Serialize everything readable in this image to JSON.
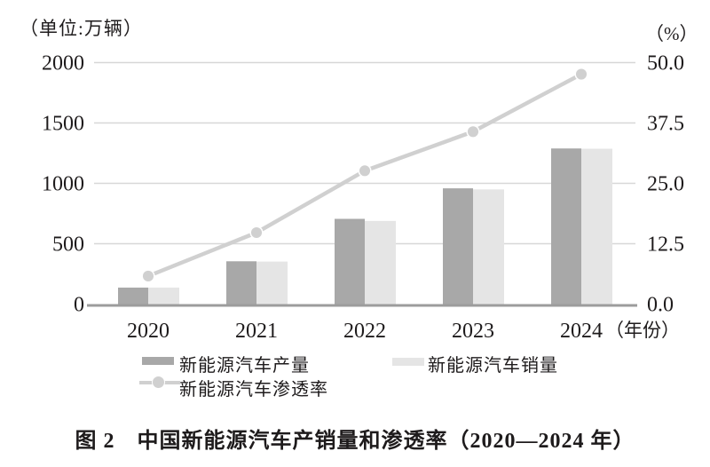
{
  "header": {
    "left_unit_label": "（单位:万辆）",
    "right_unit_label": "（%）"
  },
  "chart_data": {
    "type": "bar",
    "subtype": "grouped-bar-with-line",
    "categories": [
      "2020",
      "2021",
      "2022",
      "2023",
      "2024"
    ],
    "series": [
      {
        "name": "新能源汽车产量",
        "type": "bar",
        "axis": "left",
        "values": [
          136.6,
          354.5,
          705.8,
          958.7,
          1288.8
        ]
      },
      {
        "name": "新能源汽车销量",
        "type": "bar",
        "axis": "left",
        "values": [
          136.7,
          352.1,
          688.7,
          949.5,
          1286.6
        ]
      },
      {
        "name": "新能源汽车渗透率",
        "type": "line",
        "axis": "right",
        "values": [
          5.8,
          14.8,
          27.6,
          35.7,
          47.6
        ]
      }
    ],
    "left_axis": {
      "ticks": [
        "0",
        "500",
        "1000",
        "1500",
        "2000"
      ],
      "range": [
        0,
        2000
      ],
      "unit": "万辆"
    },
    "right_axis": {
      "ticks": [
        "0.0",
        "12.5",
        "25.0",
        "37.5",
        "50.0"
      ],
      "range": [
        0,
        50
      ],
      "unit": "%"
    },
    "x_axis_suffix": "（年份）",
    "grid": true,
    "legend_position": "bottom",
    "title": "图 2　中国新能源汽车产销量和渗透率（2020—2024 年）"
  },
  "legend": {
    "production_label": "新能源汽车产量",
    "sales_label": "新能源汽车销量",
    "penetration_label": "新能源汽车渗透率"
  },
  "caption": "图 2　中国新能源汽车产销量和渗透率（2020—2024 年）",
  "colors": {
    "production_bar": "#a8a8a8",
    "sales_bar": "#e5e5e5",
    "penetration_line": "#d0d0d0",
    "grid": "#d7d7d7",
    "axis": "#9c9c9c",
    "text": "#1e1b1c"
  }
}
